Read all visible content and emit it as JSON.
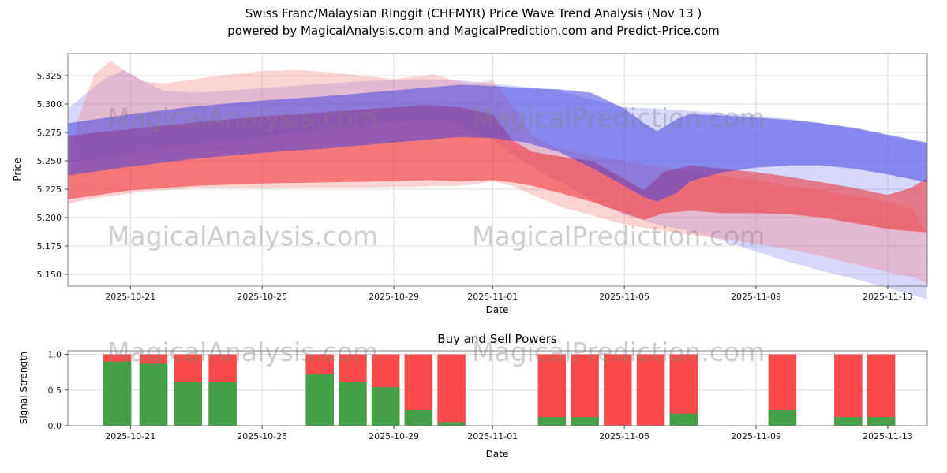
{
  "header": {
    "title_line1": "Swiss Franc/Malaysian Ringgit (CHFMYR) Price Wave Trend Analysis (Nov 13 )",
    "title_line2": "powered by MagicalAnalysis.com and MagicalPrediction.com and Predict-Price.com"
  },
  "watermarks": {
    "analysis": "MagicalAnalysis.com",
    "prediction": "MagicalPrediction.com"
  },
  "colors": {
    "buy_green": "#43a047",
    "sell_red": "#f84a4a",
    "grid": "#dcdcdc",
    "spine": "#808080",
    "tick": "#444444",
    "watermark": "rgba(128,128,128,0.38)"
  },
  "chart_data": [
    {
      "type": "area",
      "name": "price-wave-trend",
      "ylabel": "Price",
      "xlabel": "Date",
      "x_domain_days": [
        0.1,
        26.2
      ],
      "ylim": [
        5.1396,
        5.3444
      ],
      "yticks": [
        5.15,
        5.175,
        5.2,
        5.225,
        5.25,
        5.275,
        5.3,
        5.325
      ],
      "xticks": [
        {
          "day": 2,
          "label": "2025-10-21"
        },
        {
          "day": 6,
          "label": "2025-10-25"
        },
        {
          "day": 10,
          "label": "2025-10-29"
        },
        {
          "day": 13,
          "label": "2025-11-01"
        },
        {
          "day": 17,
          "label": "2025-11-05"
        },
        {
          "day": 21,
          "label": "2025-11-09"
        },
        {
          "day": 25,
          "label": "2025-11-13"
        }
      ],
      "bands": [
        {
          "name": "blue-outer-band",
          "color": "#7b7bf5",
          "opacity": 0.3,
          "x": [
            0.1,
            0.6,
            1.2,
            1.8,
            2.4,
            3,
            4,
            5,
            6,
            7,
            8,
            9,
            10,
            11,
            12,
            13,
            14,
            15,
            16,
            17,
            18,
            19,
            20,
            21,
            22,
            23,
            24,
            25,
            26.2
          ],
          "upper": [
            5.296,
            5.308,
            5.322,
            5.33,
            5.32,
            5.312,
            5.31,
            5.312,
            5.314,
            5.316,
            5.318,
            5.32,
            5.321,
            5.322,
            5.321,
            5.318,
            5.315,
            5.312,
            5.304,
            5.297,
            5.296,
            5.294,
            5.292,
            5.29,
            5.287,
            5.283,
            5.278,
            5.272,
            5.265
          ],
          "lower": [
            5.248,
            5.25,
            5.253,
            5.256,
            5.258,
            5.261,
            5.265,
            5.268,
            5.271,
            5.275,
            5.278,
            5.281,
            5.284,
            5.287,
            5.283,
            5.268,
            5.248,
            5.232,
            5.216,
            5.202,
            5.194,
            5.188,
            5.18,
            5.17,
            5.161,
            5.153,
            5.146,
            5.138,
            5.128
          ]
        },
        {
          "name": "red-outer-band",
          "color": "#f58080",
          "opacity": 0.35,
          "x": [
            0.1,
            0.4,
            0.9,
            1.4,
            1.9,
            2.4,
            3,
            4,
            5,
            6,
            7,
            8,
            9,
            10,
            10.6,
            11.2,
            11.8,
            12.4,
            13,
            13.6,
            14.2,
            15,
            16,
            17,
            18,
            19,
            20,
            21,
            22,
            23,
            24,
            25,
            25.7,
            26.2
          ],
          "upper": [
            5.23,
            5.286,
            5.326,
            5.338,
            5.328,
            5.32,
            5.318,
            5.322,
            5.326,
            5.329,
            5.33,
            5.328,
            5.325,
            5.322,
            5.324,
            5.326,
            5.321,
            5.318,
            5.321,
            5.298,
            5.272,
            5.261,
            5.255,
            5.25,
            5.245,
            5.241,
            5.237,
            5.233,
            5.228,
            5.224,
            5.219,
            5.214,
            5.208,
            5.186
          ],
          "lower": [
            5.212,
            5.214,
            5.217,
            5.219,
            5.221,
            5.223,
            5.224,
            5.226,
            5.226,
            5.226,
            5.226,
            5.226,
            5.226,
            5.227,
            5.227,
            5.228,
            5.228,
            5.229,
            5.232,
            5.228,
            5.22,
            5.21,
            5.202,
            5.194,
            5.189,
            5.185,
            5.181,
            5.177,
            5.172,
            5.166,
            5.159,
            5.152,
            5.148,
            5.142
          ]
        },
        {
          "name": "red-main-band",
          "color": "#ee2c2c",
          "opacity": 0.55,
          "x": [
            0.1,
            2,
            4,
            6,
            8,
            10,
            11,
            12,
            13,
            13.6,
            14.2,
            15,
            16,
            17,
            17.6,
            18.2,
            19,
            20,
            21,
            22,
            23,
            24,
            25,
            25.7,
            26.2
          ],
          "upper": [
            5.272,
            5.278,
            5.284,
            5.289,
            5.293,
            5.297,
            5.299,
            5.297,
            5.291,
            5.268,
            5.258,
            5.254,
            5.25,
            5.234,
            5.224,
            5.24,
            5.246,
            5.243,
            5.24,
            5.236,
            5.231,
            5.226,
            5.22,
            5.226,
            5.235
          ],
          "lower": [
            5.216,
            5.224,
            5.228,
            5.23,
            5.231,
            5.232,
            5.233,
            5.232,
            5.233,
            5.231,
            5.228,
            5.222,
            5.214,
            5.204,
            5.198,
            5.204,
            5.206,
            5.204,
            5.204,
            5.203,
            5.2,
            5.195,
            5.19,
            5.188,
            5.187
          ]
        },
        {
          "name": "blue-main-band",
          "color": "#4646e0",
          "opacity": 0.55,
          "x": [
            0.1,
            2,
            4,
            6,
            8,
            10,
            12,
            13,
            14,
            15,
            16,
            17,
            17.6,
            18,
            18.6,
            19,
            20,
            21,
            22,
            23,
            24,
            25,
            26.2
          ],
          "upper": [
            5.283,
            5.291,
            5.298,
            5.303,
            5.307,
            5.312,
            5.317,
            5.316,
            5.314,
            5.313,
            5.31,
            5.296,
            5.283,
            5.276,
            5.287,
            5.291,
            5.29,
            5.288,
            5.286,
            5.283,
            5.279,
            5.273,
            5.266
          ],
          "lower": [
            5.237,
            5.245,
            5.252,
            5.257,
            5.261,
            5.266,
            5.271,
            5.27,
            5.266,
            5.258,
            5.244,
            5.228,
            5.218,
            5.214,
            5.222,
            5.232,
            5.24,
            5.244,
            5.246,
            5.246,
            5.243,
            5.238,
            5.231
          ]
        }
      ]
    },
    {
      "type": "bar",
      "name": "buy-sell-powers",
      "title": "Buy and Sell Powers",
      "ylabel": "Signal Strength",
      "xlabel": "Date",
      "ylim": [
        0,
        1.05
      ],
      "yticks": [
        0.0,
        0.5,
        1.0
      ],
      "xticks": [
        {
          "day": 2,
          "label": "2025-10-21"
        },
        {
          "day": 6,
          "label": "2025-10-25"
        },
        {
          "day": 10,
          "label": "2025-10-29"
        },
        {
          "day": 13,
          "label": "2025-11-01"
        },
        {
          "day": 17,
          "label": "2025-11-05"
        },
        {
          "day": 21,
          "label": "2025-11-09"
        },
        {
          "day": 25,
          "label": "2025-11-13"
        }
      ],
      "bar_width_days": 0.85,
      "bars": [
        {
          "day": 1.6,
          "buy": 0.9,
          "sell": 1.0
        },
        {
          "day": 2.7,
          "buy": 0.87,
          "sell": 1.0
        },
        {
          "day": 3.75,
          "buy": 0.62,
          "sell": 1.0
        },
        {
          "day": 4.8,
          "buy": 0.61,
          "sell": 1.0
        },
        {
          "day": 7.75,
          "buy": 0.72,
          "sell": 1.0
        },
        {
          "day": 8.75,
          "buy": 0.61,
          "sell": 1.0
        },
        {
          "day": 9.75,
          "buy": 0.54,
          "sell": 1.0
        },
        {
          "day": 10.75,
          "buy": 0.22,
          "sell": 1.0
        },
        {
          "day": 11.75,
          "buy": 0.05,
          "sell": 1.0
        },
        {
          "day": 14.8,
          "buy": 0.12,
          "sell": 1.0
        },
        {
          "day": 15.8,
          "buy": 0.12,
          "sell": 1.0
        },
        {
          "day": 16.8,
          "buy": 0.0,
          "sell": 1.0
        },
        {
          "day": 17.8,
          "buy": 0.0,
          "sell": 1.0
        },
        {
          "day": 18.8,
          "buy": 0.17,
          "sell": 1.0
        },
        {
          "day": 21.8,
          "buy": 0.22,
          "sell": 1.0
        },
        {
          "day": 23.8,
          "buy": 0.12,
          "sell": 1.0
        },
        {
          "day": 24.8,
          "buy": 0.12,
          "sell": 1.0
        }
      ]
    }
  ]
}
